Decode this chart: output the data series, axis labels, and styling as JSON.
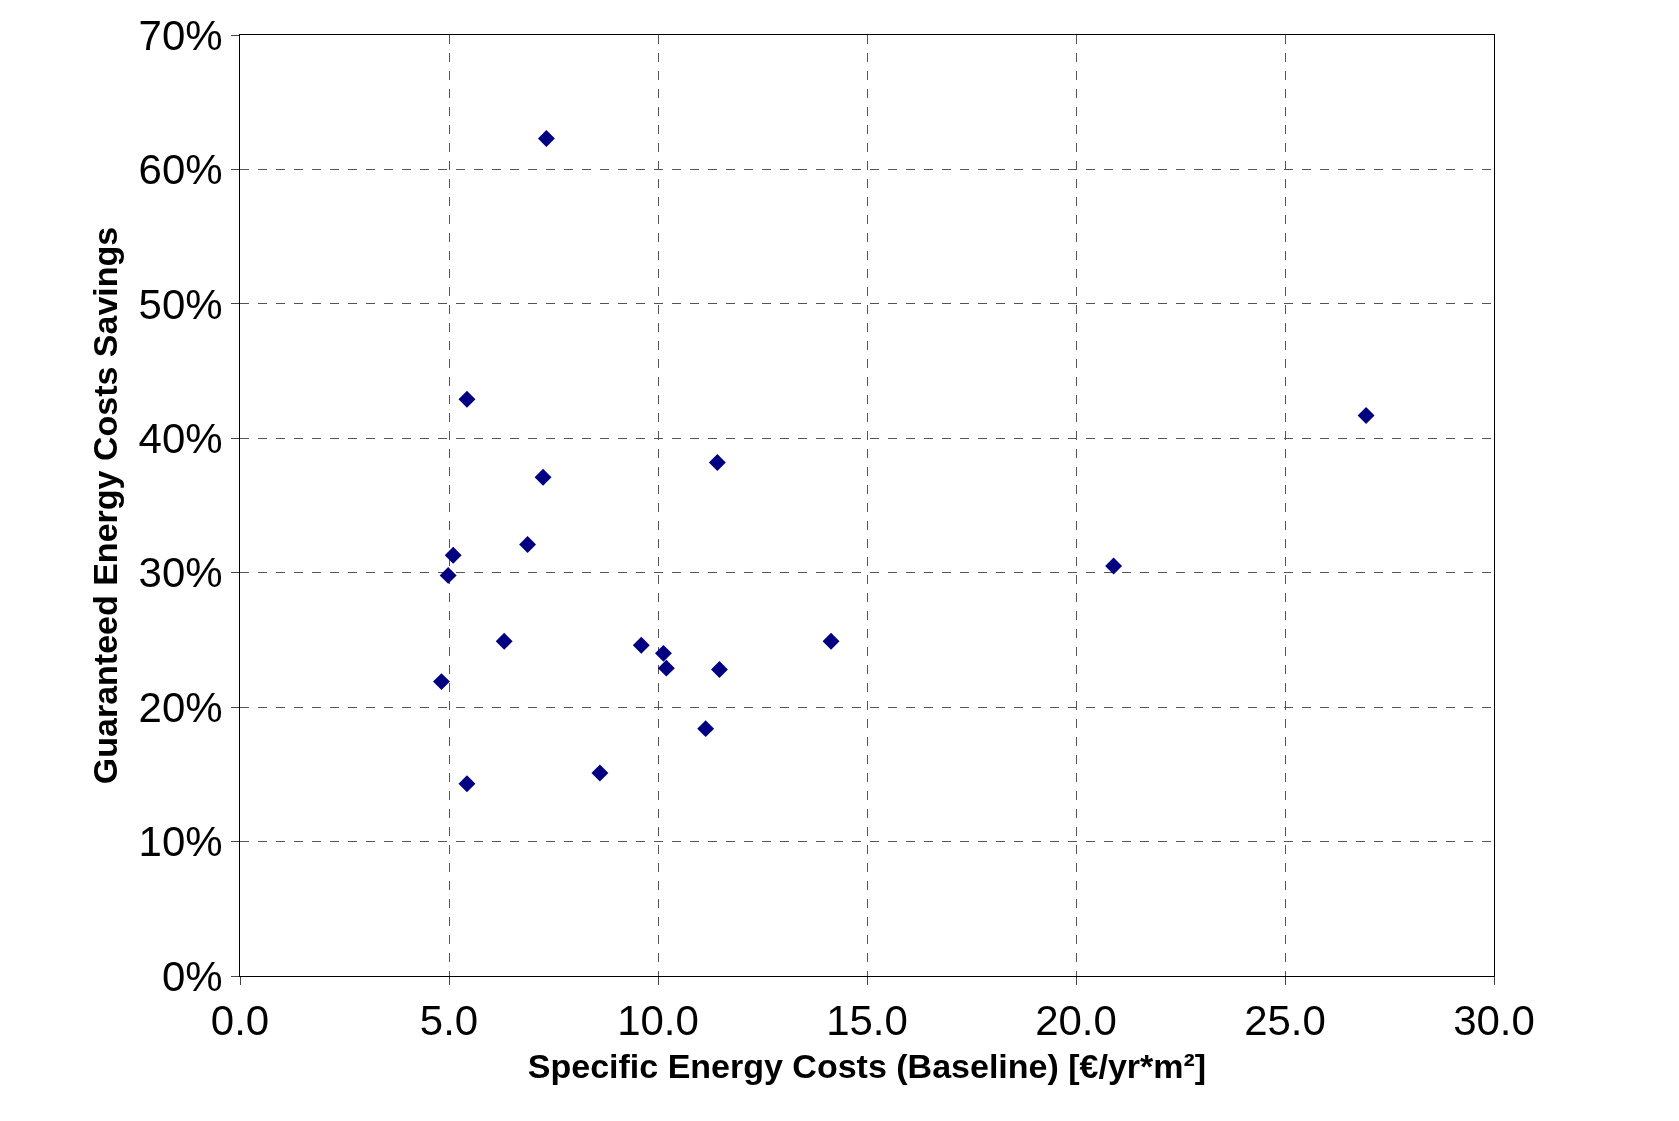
{
  "chart_data": {
    "type": "scatter",
    "xlabel": "Specific Energy Costs (Baseline) [€/yr*m²]",
    "ylabel": "Guaranteed Energy Costs Savings",
    "x": [
      7.33,
      5.43,
      26.94,
      11.42,
      7.25,
      6.88,
      5.1,
      4.98,
      20.9,
      6.32,
      9.6,
      14.14,
      10.13,
      10.2,
      11.47,
      4.82,
      11.14,
      8.61,
      5.43
    ],
    "series": [
      {
        "color": "#000080",
        "values": [
          62.3,
          42.9,
          41.7,
          38.2,
          37.1,
          32.1,
          31.3,
          29.8,
          30.5,
          24.9,
          24.6,
          24.9,
          24.0,
          22.9,
          22.8,
          21.9,
          18.4,
          15.1,
          14.3
        ]
      }
    ],
    "xlim": [
      0,
      30
    ],
    "xticks": [
      {
        "value": 0,
        "label": "0.0"
      },
      {
        "value": 5,
        "label": "5.0"
      },
      {
        "value": 10,
        "label": "10.0"
      },
      {
        "value": 15,
        "label": "15.0"
      },
      {
        "value": 20,
        "label": "20.0"
      },
      {
        "value": 25,
        "label": "25.0"
      },
      {
        "value": 30,
        "label": "30.0"
      }
    ],
    "ylim": [
      0,
      70
    ],
    "yticks": [
      {
        "value": 0,
        "label": "0%"
      },
      {
        "value": 10,
        "label": "10%"
      },
      {
        "value": 20,
        "label": "20%"
      },
      {
        "value": 30,
        "label": "30%"
      },
      {
        "value": 40,
        "label": "40%"
      },
      {
        "value": 50,
        "label": "50%"
      },
      {
        "value": 60,
        "label": "60%"
      },
      {
        "value": 70,
        "label": "70%"
      }
    ],
    "grid": true,
    "marker": "diamond"
  }
}
